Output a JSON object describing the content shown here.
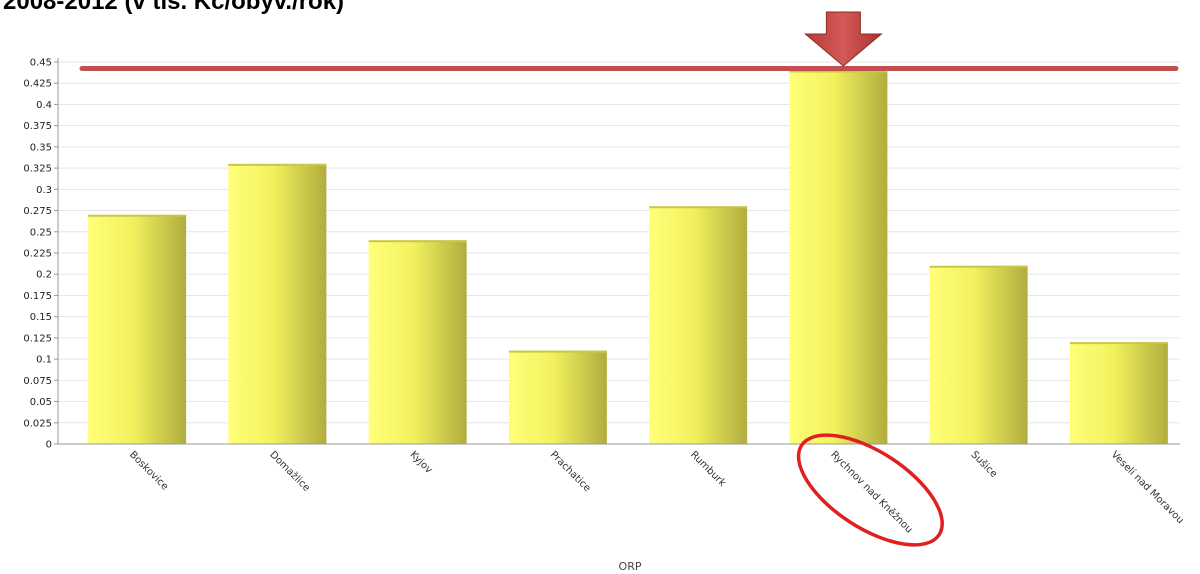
{
  "header": {
    "title": "2008-2012 (v tis. Kč/obyv./rok)"
  },
  "chart_data": {
    "type": "bar",
    "title": "2008-2012 (v tis. Kč/obyv./rok)",
    "xlabel": "ORP",
    "ylabel": "",
    "ylim": [
      0,
      0.45
    ],
    "ytick_step": 0.025,
    "y_ticks": [
      "0",
      "0.025",
      "0.05",
      "0.075",
      "0.1",
      "0.125",
      "0.15",
      "0.175",
      "0.2",
      "0.225",
      "0.25",
      "0.275",
      "0.3",
      "0.325",
      "0.35",
      "0.375",
      "0.4",
      "0.425",
      "0.45"
    ],
    "grid": true,
    "categories": [
      "Boskovice",
      "Domažlice",
      "Kyjov",
      "Prachatice",
      "Rumburk",
      "Rychnov nad Kněžnou",
      "Sušice",
      "Veselí nad Moravou"
    ],
    "values": [
      0.27,
      0.33,
      0.24,
      0.11,
      0.28,
      0.44,
      0.21,
      0.12
    ],
    "bar_color": "#f2f25e",
    "annotations": {
      "reference_line_value": 0.44,
      "reference_line_color": "#c0504d",
      "highlighted_category": "Rychnov nad Kněžnou",
      "highlight_color": "#e02020"
    }
  }
}
